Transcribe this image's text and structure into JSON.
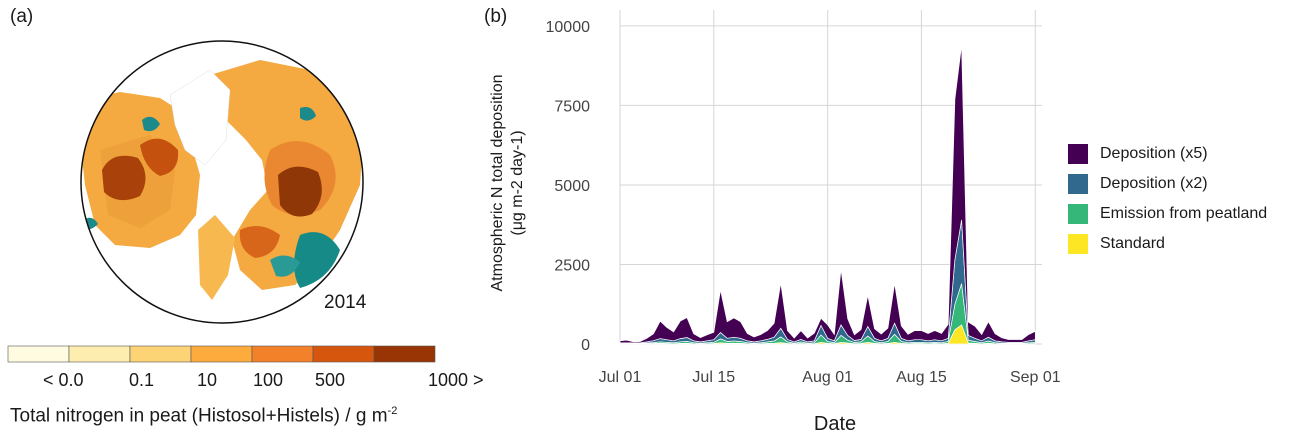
{
  "panel_a": {
    "label": "(a)",
    "year": "2014",
    "colorbar": {
      "colors": [
        "#fffbe0",
        "#fdeeb0",
        "#fdd475",
        "#fdab3d",
        "#f2812a",
        "#d7560e",
        "#993404"
      ],
      "ticks": [
        "< 0.0",
        "0.1",
        "10",
        "100",
        "500",
        "1000 >"
      ],
      "title_main": "Total nitrogen in peat (Histosol+Histels) / g m",
      "title_sup": "-2"
    }
  },
  "panel_b": {
    "label": "(b)"
  },
  "chart_data": {
    "type": "area",
    "stacked": true,
    "xlabel": "Date",
    "ylabel_line1": "Atmospheric N total deposition",
    "ylabel_line2": "(μg m-2 day-1)",
    "ylim": [
      0,
      10500
    ],
    "yticks": [
      0,
      2500,
      5000,
      7500,
      10000
    ],
    "xlim": [
      "2014-07-01",
      "2014-09-02"
    ],
    "xticks": [
      {
        "label": "Jul 01",
        "day": 0
      },
      {
        "label": "Jul 15",
        "day": 14
      },
      {
        "label": "Aug 01",
        "day": 31
      },
      {
        "label": "Aug 15",
        "day": 45
      },
      {
        "label": "Sep 01",
        "day": 62
      }
    ],
    "grid": true,
    "legend_position": "right",
    "dates": [
      "Jul 01",
      "Jul 02",
      "Jul 03",
      "Jul 04",
      "Jul 05",
      "Jul 06",
      "Jul 07",
      "Jul 08",
      "Jul 09",
      "Jul 10",
      "Jul 11",
      "Jul 12",
      "Jul 13",
      "Jul 14",
      "Jul 15",
      "Jul 16",
      "Jul 17",
      "Jul 18",
      "Jul 19",
      "Jul 20",
      "Jul 21",
      "Jul 22",
      "Jul 23",
      "Jul 24",
      "Jul 25",
      "Jul 26",
      "Jul 27",
      "Jul 28",
      "Jul 29",
      "Jul 30",
      "Jul 31",
      "Aug 01",
      "Aug 02",
      "Aug 03",
      "Aug 04",
      "Aug 05",
      "Aug 06",
      "Aug 07",
      "Aug 08",
      "Aug 09",
      "Aug 10",
      "Aug 11",
      "Aug 12",
      "Aug 13",
      "Aug 14",
      "Aug 15",
      "Aug 16",
      "Aug 17",
      "Aug 18",
      "Aug 19",
      "Aug 20",
      "Aug 21",
      "Aug 22",
      "Aug 23",
      "Aug 24",
      "Aug 25",
      "Aug 26",
      "Aug 27",
      "Aug 28",
      "Aug 29",
      "Aug 30",
      "Aug 31",
      "Sep 01"
    ],
    "series": [
      {
        "name": "Standard",
        "color": "#fde725",
        "values": [
          5,
          5,
          5,
          5,
          10,
          15,
          20,
          15,
          10,
          20,
          25,
          10,
          5,
          10,
          15,
          40,
          20,
          25,
          20,
          10,
          5,
          10,
          15,
          25,
          45,
          15,
          5,
          15,
          5,
          10,
          55,
          20,
          10,
          50,
          30,
          10,
          15,
          50,
          20,
          10,
          20,
          55,
          20,
          10,
          15,
          15,
          10,
          15,
          10,
          20,
          450,
          600,
          30,
          20,
          10,
          25,
          10,
          5,
          5,
          5,
          5,
          10,
          15
        ]
      },
      {
        "name": "Emission from peatland",
        "color": "#35b779",
        "values": [
          10,
          10,
          10,
          10,
          20,
          30,
          50,
          40,
          30,
          50,
          60,
          30,
          20,
          30,
          40,
          120,
          60,
          70,
          60,
          30,
          20,
          30,
          50,
          70,
          180,
          50,
          20,
          50,
          20,
          30,
          230,
          60,
          30,
          220,
          90,
          40,
          50,
          200,
          60,
          30,
          60,
          250,
          60,
          30,
          40,
          40,
          30,
          40,
          30,
          60,
          800,
          1300,
          90,
          60,
          30,
          70,
          30,
          20,
          15,
          15,
          15,
          30,
          40
        ]
      },
      {
        "name": "Deposition (x2)",
        "color": "#31688e",
        "values": [
          20,
          20,
          20,
          20,
          40,
          60,
          100,
          80,
          60,
          100,
          120,
          60,
          40,
          60,
          80,
          200,
          100,
          120,
          100,
          60,
          40,
          60,
          80,
          120,
          270,
          80,
          40,
          80,
          40,
          60,
          300,
          100,
          60,
          330,
          150,
          60,
          80,
          300,
          100,
          60,
          100,
          350,
          100,
          60,
          80,
          80,
          60,
          80,
          60,
          100,
          1400,
          2000,
          150,
          100,
          60,
          120,
          60,
          40,
          30,
          30,
          30,
          60,
          80
        ]
      },
      {
        "name": "Deposition (x5)",
        "color": "#440154",
        "values": [
          65,
          85,
          35,
          45,
          110,
          215,
          550,
          385,
          280,
          550,
          625,
          220,
          135,
          190,
          235,
          1340,
          520,
          605,
          520,
          230,
          155,
          200,
          275,
          435,
          1425,
          275,
          120,
          275,
          125,
          240,
          225,
          420,
          200,
          1750,
          530,
          180,
          310,
          980,
          300,
          210,
          320,
          1250,
          390,
          205,
          285,
          285,
          230,
          285,
          230,
          440,
          5050,
          5500,
          420,
          380,
          200,
          485,
          220,
          130,
          90,
          90,
          90,
          200,
          265
        ]
      }
    ]
  }
}
